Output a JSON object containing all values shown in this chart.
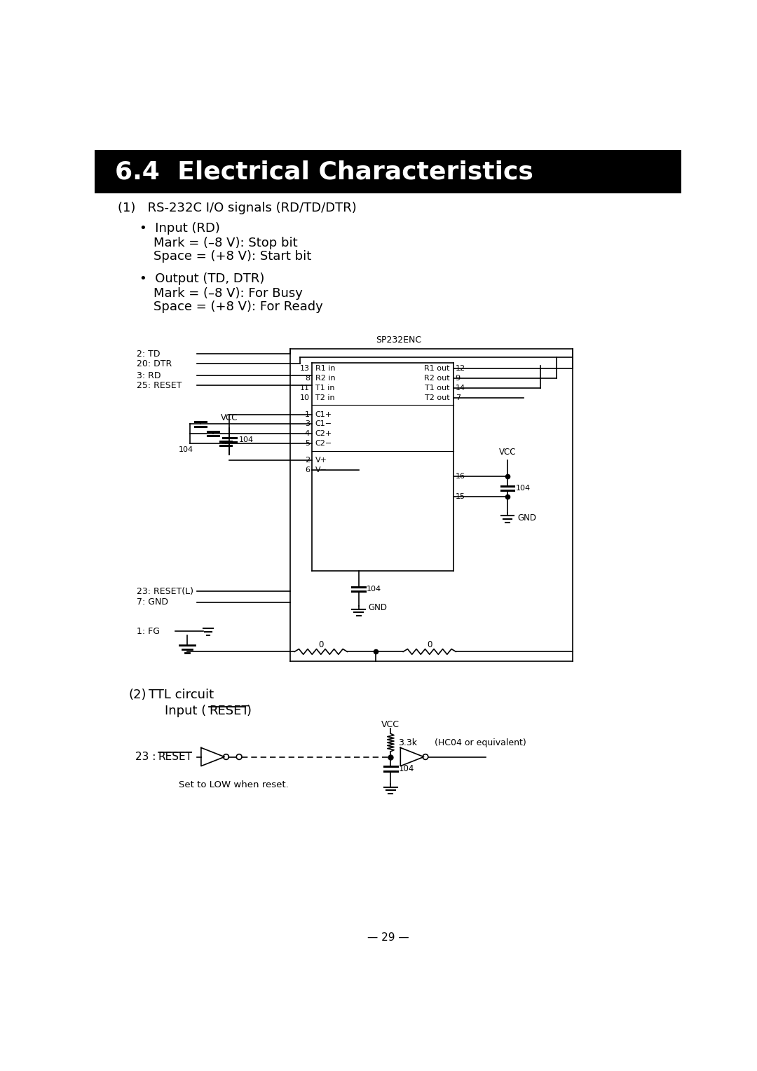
{
  "title": "6.4  Electrical Characteristics",
  "title_bg": "#000000",
  "title_fg": "#ffffff",
  "page_bg": "#ffffff",
  "page_number": "— 29 —",
  "section1_header": "(1)   RS-232C I/O signals (RD/TD/DTR)",
  "bullet1_title": "•  Input (RD)",
  "bullet1_lines": [
    "Mark = (–8 V): Stop bit",
    "Space = (+8 V): Start bit"
  ],
  "bullet2_title": "•  Output (TD, DTR)",
  "bullet2_lines": [
    "Mark = (–8 V): For Busy",
    "Space = (+8 V): For Ready"
  ],
  "font_color": "#000000",
  "ic_label": "SP232ENC",
  "page_number_text": "— 29 —"
}
